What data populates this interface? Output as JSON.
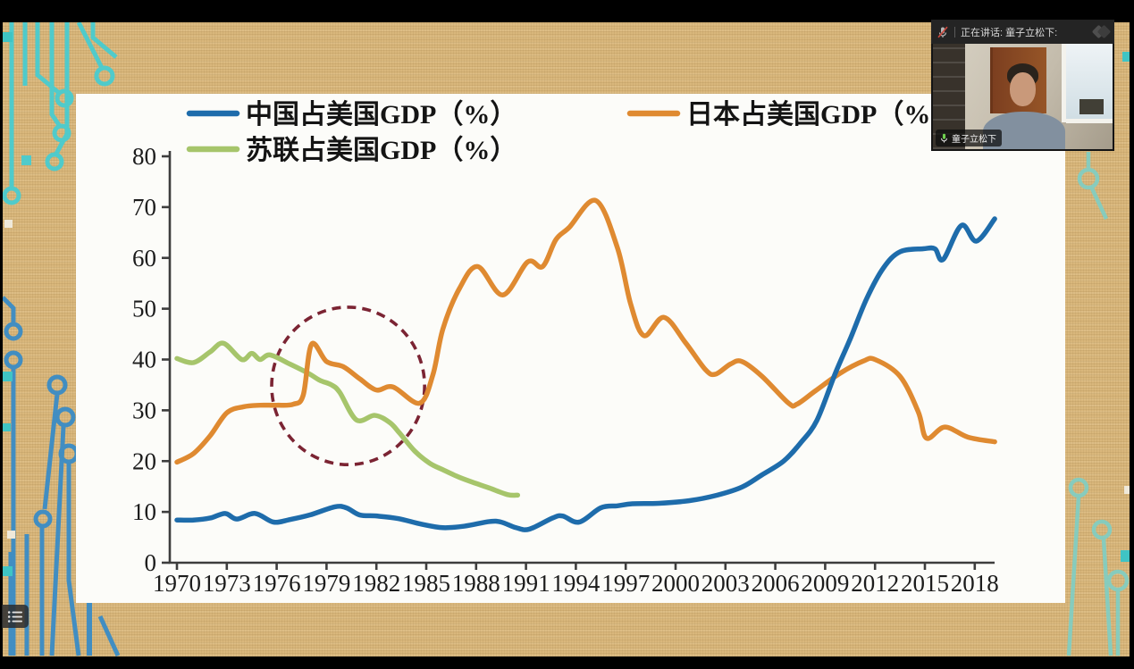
{
  "meeting": {
    "status_bar": {
      "speaking_label": "正在讲话: 童子立松下:"
    },
    "participant": {
      "name": "童子立松下"
    }
  },
  "chart_data": {
    "type": "line",
    "title": "",
    "xlabel": "",
    "ylabel": "",
    "ylim": [
      0,
      80
    ],
    "y_ticks": [
      0,
      10,
      20,
      30,
      40,
      50,
      60,
      70,
      80
    ],
    "x_ticks": [
      1970,
      1973,
      1976,
      1979,
      1982,
      1985,
      1988,
      1991,
      1994,
      1997,
      2000,
      2003,
      2006,
      2009,
      2012,
      2015,
      2018
    ],
    "grid": false,
    "legend_position": "top",
    "legend": [
      {
        "label": "中国占美国GDP（%）",
        "color": "#1e6cab"
      },
      {
        "label": "日本占美国GDP（%）",
        "color": "#df8a31"
      },
      {
        "label": "苏联占美国GDP（%）",
        "color": "#a6c56b"
      }
    ],
    "series": [
      {
        "name": "中国占美国GDP（%）",
        "color": "#1e6cab",
        "x": [
          1970,
          1971,
          1972,
          1972.9,
          1973.6,
          1974.7,
          1975.8,
          1976.8,
          1978,
          1979.5,
          1980.2,
          1981,
          1982,
          1983.3,
          1984.7,
          1986,
          1987.3,
          1988.8,
          1989.5,
          1990.4,
          1991.2,
          1992.6,
          1993.2,
          1994.2,
          1995.5,
          1996.5,
          1997.4,
          1999,
          2000.8,
          2002.5,
          2004,
          2005.2,
          2006.5,
          2007.5,
          2008.5,
          2009.6,
          2010.5,
          2011.5,
          2012.5,
          2013.5,
          2014.9,
          2015.6,
          2016.1,
          2017.2,
          2018.1,
          2019.2
        ],
        "values": [
          8.4,
          8.4,
          8.8,
          9.7,
          8.6,
          9.7,
          8.0,
          8.5,
          9.4,
          11.0,
          10.8,
          9.4,
          9.2,
          8.7,
          7.6,
          6.9,
          7.2,
          8.1,
          8.0,
          6.9,
          6.6,
          8.8,
          9.2,
          8.0,
          10.8,
          11.2,
          11.6,
          11.7,
          12.2,
          13.3,
          14.9,
          17.3,
          20.0,
          23.5,
          28.0,
          37.2,
          44.0,
          52.0,
          58.0,
          61.2,
          61.8,
          61.8,
          59.7,
          66.4,
          63.3,
          67.7
        ]
      },
      {
        "name": "日本占美国GDP（%）",
        "color": "#df8a31",
        "x": [
          1970,
          1971,
          1972,
          1973,
          1974,
          1975,
          1976,
          1977,
          1977.6,
          1978.1,
          1979,
          1980,
          1981,
          1982,
          1983,
          1984.6,
          1985.4,
          1986,
          1987,
          1988.1,
          1989.6,
          1991.1,
          1992,
          1992.8,
          1993.6,
          1995.2,
          1996.5,
          1997.3,
          1998.1,
          1999.3,
          2000.6,
          2001.8,
          2002.4,
          2003.3,
          2004,
          2005.2,
          2006.8,
          2007.3,
          2008.4,
          2009.9,
          2011.3,
          2012,
          2013.5,
          2014.6,
          2015.1,
          2016.2,
          2017.6,
          2019.2
        ],
        "values": [
          19.8,
          21.5,
          25.0,
          29.5,
          30.7,
          31.0,
          31.0,
          31.2,
          33.0,
          43.0,
          39.6,
          38.6,
          36.2,
          34.0,
          34.6,
          31.4,
          37.0,
          46.0,
          54.0,
          58.3,
          52.7,
          59.2,
          58.3,
          63.6,
          66.0,
          71.3,
          62.0,
          50.9,
          44.7,
          48.3,
          43.3,
          38.0,
          37.1,
          39.1,
          39.6,
          36.7,
          31.4,
          31.2,
          33.8,
          37.3,
          39.7,
          40.0,
          36.7,
          29.7,
          24.5,
          26.7,
          24.7,
          23.8
        ]
      },
      {
        "name": "苏联占美国GDP（%）",
        "color": "#a6c56b",
        "x": [
          1970,
          1971,
          1972,
          1972.8,
          1973.9,
          1974.5,
          1975,
          1975.6,
          1976.8,
          1977.9,
          1978.6,
          1979.3,
          1979.8,
          1980.8,
          1981.9,
          1982.8,
          1983.4,
          1984.3,
          1985.2,
          1986,
          1987,
          1988,
          1988.8,
          1989.9,
          1990.5
        ],
        "values": [
          40.2,
          39.4,
          41.5,
          43.2,
          40.0,
          41.2,
          40.0,
          40.9,
          39.1,
          37.3,
          35.9,
          35.0,
          33.5,
          28.1,
          29.0,
          27.6,
          25.5,
          22.0,
          19.6,
          18.3,
          16.8,
          15.6,
          14.7,
          13.4,
          13.3
        ]
      }
    ],
    "annotation": {
      "shape": "dashed-ellipse",
      "color": "#7b2433",
      "x_center": 1980.3,
      "y_center": 34.8,
      "x_radius_years": 4.6,
      "y_radius_units": 15.5
    }
  }
}
